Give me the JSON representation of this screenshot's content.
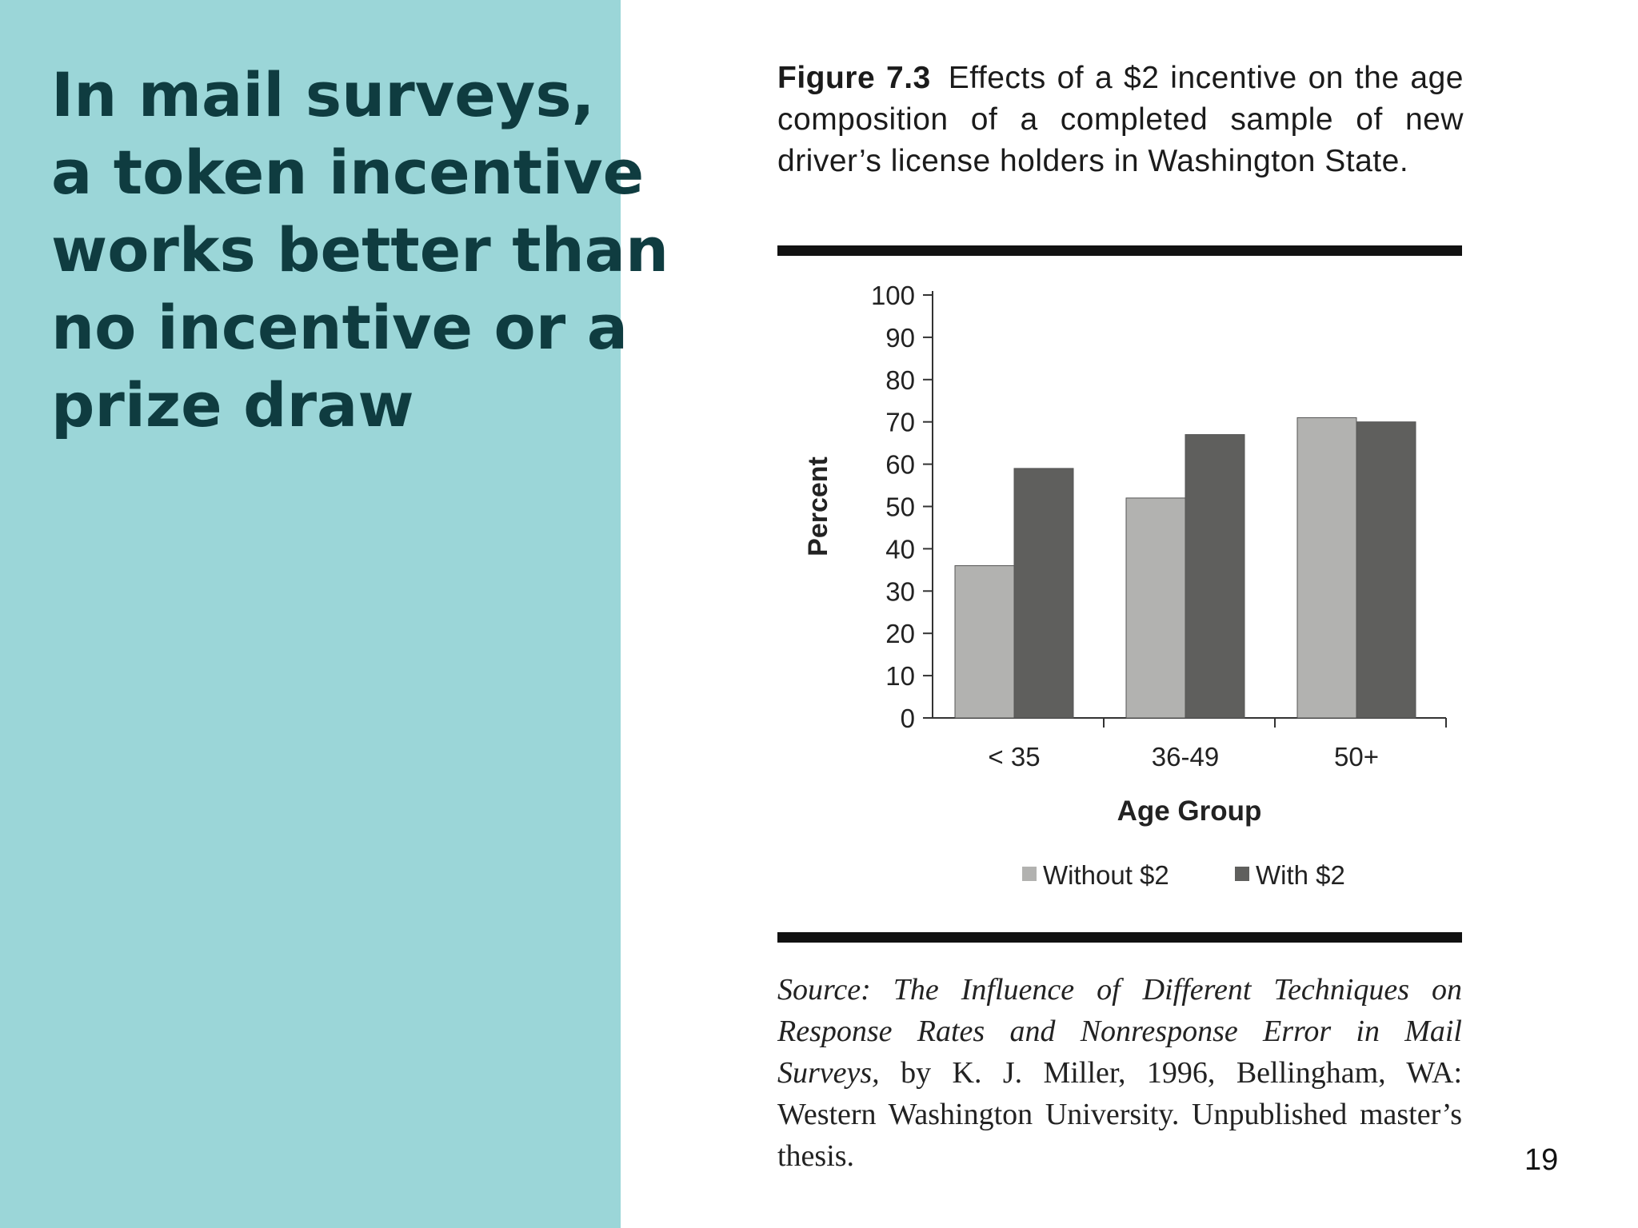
{
  "slide": {
    "headline_lines": [
      "In mail surveys,",
      "a token incentive",
      "works better than",
      "no incentive or a",
      "prize draw"
    ],
    "page_number": "19",
    "panel_color": "#9bd6d8",
    "headline_color": "#0f3c40"
  },
  "figure": {
    "label": "Figure 7.3",
    "caption": "Effects of a $2 incentive on the age composition of a completed sample of new driver’s license holders in Washington State.",
    "source_italic_prefix": "Source:",
    "source_italic_title": "The Influence of Different Techniques on Response Rates and Nonresponse Error in Mail Surveys,",
    "source_rest": "by K. J. Miller, 1996, Bellingham, WA: Western Washington University. Unpublished mas­ter’s thesis."
  },
  "chart_data": {
    "type": "bar",
    "categories": [
      "< 35",
      "36-49",
      "50+"
    ],
    "series": [
      {
        "name": "Without $2",
        "values": [
          36,
          52,
          71
        ],
        "color": "#b2b2b0"
      },
      {
        "name": "With $2",
        "values": [
          59,
          67,
          70
        ],
        "color": "#5f5f5d"
      }
    ],
    "xlabel": "Age Group",
    "ylabel": "Percent",
    "ylim": [
      0,
      100
    ],
    "yticks": [
      0,
      10,
      20,
      30,
      40,
      50,
      60,
      70,
      80,
      90,
      100
    ],
    "grid": false,
    "legend": "bottom"
  }
}
